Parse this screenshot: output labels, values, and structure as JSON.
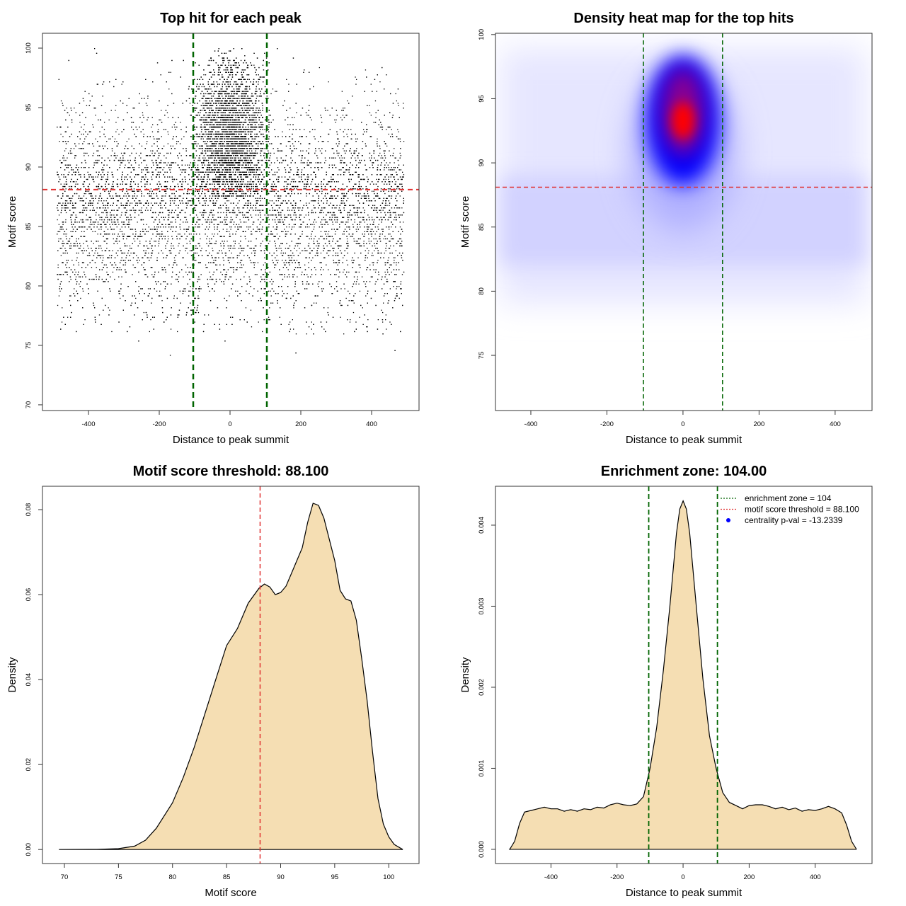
{
  "chart_data": [
    {
      "type": "scatter",
      "title": "Top hit for each peak",
      "xlabel": "Distance to peak summit",
      "ylabel": "Motif score",
      "xlim": [
        -530,
        534
      ],
      "ylim": [
        69.52,
        101.25
      ],
      "xticks": [
        -400,
        -200,
        0,
        200,
        400
      ],
      "yticks": [
        70,
        75,
        80,
        85,
        90,
        95,
        100
      ],
      "vlines": [
        -104,
        104
      ],
      "hline": 88.1,
      "point_model": {
        "background": {
          "n": 9000,
          "x_range": [
            -490,
            490
          ],
          "y_mean": 86.5,
          "y_sd": 4.5,
          "y_range": [
            76,
            100
          ]
        },
        "center": {
          "n": 7000,
          "x_sd": 48,
          "x_range": [
            -110,
            110
          ],
          "y_mean": 93,
          "y_sd": 3,
          "y_range": [
            87.5,
            100
          ]
        }
      },
      "colors": {
        "points": "#000000",
        "vline": "#006400",
        "hline": "#e03030"
      }
    },
    {
      "type": "heatmap",
      "title": "Density heat map for the top hits",
      "xlabel": "Distance to peak summit",
      "ylabel": "Motif score",
      "xlim": [
        -493,
        497
      ],
      "ylim": [
        70.7,
        100.1
      ],
      "xticks": [
        -400,
        -200,
        0,
        200,
        400
      ],
      "yticks": [
        75,
        80,
        85,
        90,
        95,
        100
      ],
      "vlines": [
        -104,
        104
      ],
      "hline": 88.1,
      "hotspot": {
        "x": 0,
        "y": 93.3
      },
      "colors": {
        "low": "#ffffff",
        "mid": "#0000ff",
        "high": "#ff0000",
        "vline": "#006400",
        "hline": "#e03030"
      }
    },
    {
      "type": "area",
      "title": "Motif score threshold: 88.100",
      "xlabel": "Motif score",
      "ylabel": "Density",
      "xlim": [
        67.97,
        102.8
      ],
      "ylim": [
        -0.0033,
        0.0855
      ],
      "xticks": [
        70,
        75,
        80,
        85,
        90,
        95,
        100
      ],
      "yticks": [
        0.0,
        0.02,
        0.04,
        0.06,
        0.08
      ],
      "ytick_labels": [
        "0.00",
        "0.02",
        "0.04",
        "0.06",
        "0.08"
      ],
      "x": [
        69.5,
        73,
        75,
        76.5,
        77.5,
        78.5,
        80,
        81,
        82,
        83,
        84,
        85,
        86,
        87,
        88,
        88.5,
        89,
        89.5,
        90,
        90.5,
        91,
        92,
        92.5,
        93,
        93.5,
        94,
        95,
        95.5,
        96,
        96.5,
        97,
        97.5,
        98,
        98.5,
        99,
        99.5,
        100,
        100.5,
        101.3
      ],
      "y": [
        0,
        3e-05,
        0.0002,
        0.0008,
        0.0022,
        0.005,
        0.011,
        0.017,
        0.024,
        0.032,
        0.04,
        0.048,
        0.052,
        0.058,
        0.0615,
        0.0625,
        0.0618,
        0.06,
        0.0605,
        0.062,
        0.065,
        0.071,
        0.077,
        0.0815,
        0.081,
        0.078,
        0.068,
        0.061,
        0.059,
        0.0585,
        0.054,
        0.045,
        0.035,
        0.023,
        0.012,
        0.006,
        0.003,
        0.0012,
        0
      ],
      "vline": 88.1,
      "colors": {
        "fill": "#f5deb3",
        "line": "#000000",
        "vline": "#e03030"
      }
    },
    {
      "type": "area",
      "title": "Enrichment zone: 104.00",
      "xlabel": "Distance to peak summit",
      "ylabel": "Density",
      "xlim": [
        -568,
        572
      ],
      "ylim": [
        -0.000175,
        0.00448
      ],
      "xticks": [
        -400,
        -200,
        0,
        200,
        400
      ],
      "yticks": [
        0,
        0.001,
        0.002,
        0.003,
        0.004
      ],
      "ytick_labels": [
        "0.000",
        "0.001",
        "0.002",
        "0.003",
        "0.004"
      ],
      "x": [
        -525,
        -510,
        -495,
        -480,
        -460,
        -440,
        -420,
        -400,
        -380,
        -360,
        -340,
        -320,
        -300,
        -280,
        -260,
        -240,
        -220,
        -200,
        -180,
        -160,
        -140,
        -120,
        -100,
        -80,
        -60,
        -40,
        -20,
        -10,
        0,
        10,
        20,
        40,
        60,
        80,
        100,
        120,
        140,
        160,
        180,
        200,
        220,
        240,
        260,
        280,
        300,
        320,
        340,
        360,
        380,
        400,
        420,
        440,
        460,
        480,
        495,
        510,
        525
      ],
      "y": [
        0,
        0.0001,
        0.00032,
        0.00046,
        0.00048,
        0.0005,
        0.00052,
        0.0005,
        0.0005,
        0.00047,
        0.00049,
        0.00047,
        0.0005,
        0.00049,
        0.00052,
        0.00051,
        0.00055,
        0.00057,
        0.00055,
        0.00054,
        0.00056,
        0.00065,
        0.001,
        0.0015,
        0.0022,
        0.003,
        0.0039,
        0.0042,
        0.0043,
        0.0042,
        0.0039,
        0.003,
        0.0021,
        0.0014,
        0.001,
        0.0007,
        0.00058,
        0.00054,
        0.0005,
        0.00054,
        0.00055,
        0.00055,
        0.00053,
        0.0005,
        0.00052,
        0.00049,
        0.00051,
        0.00047,
        0.00049,
        0.00048,
        0.0005,
        0.00053,
        0.0005,
        0.00045,
        0.0003,
        0.0001,
        0
      ],
      "vlines": [
        -104,
        104
      ],
      "legend": {
        "position": "top-right",
        "entries": [
          {
            "label": "enrichment zone = 104",
            "style": "dotted",
            "color": "#006400"
          },
          {
            "label": "motif score threshold = 88.100",
            "style": "dotted",
            "color": "#e03030"
          },
          {
            "label": "centrality p-val = -13.2339",
            "style": "point",
            "color": "#0000ff"
          }
        ]
      },
      "colors": {
        "fill": "#f5deb3",
        "line": "#000000",
        "vline": "#006400"
      }
    }
  ]
}
